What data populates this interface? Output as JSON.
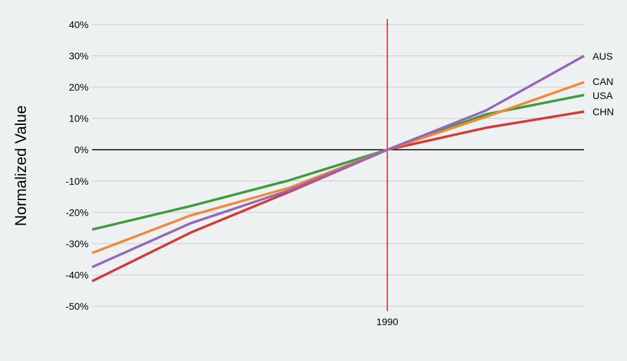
{
  "chart_data": {
    "type": "line",
    "title": "",
    "xlabel": "",
    "ylabel": "Normalized Value",
    "x": [
      1960,
      1970,
      1980,
      1990,
      2000,
      2010
    ],
    "x_tick_labels": [
      {
        "x": 1990,
        "label": "1990"
      }
    ],
    "xlim": [
      1960,
      2010
    ],
    "ylim": [
      -0.5,
      0.4
    ],
    "y_ticks": [
      {
        "value": 0.4,
        "label": "40%"
      },
      {
        "value": 0.3,
        "label": "30%"
      },
      {
        "value": 0.2,
        "label": "20%"
      },
      {
        "value": 0.1,
        "label": "10%"
      },
      {
        "value": 0.0,
        "label": "0%"
      },
      {
        "value": -0.1,
        "label": "-10%"
      },
      {
        "value": -0.2,
        "label": "-20%"
      },
      {
        "value": -0.3,
        "label": "-30%"
      },
      {
        "value": -0.4,
        "label": "-40%"
      },
      {
        "value": -0.5,
        "label": "-50%"
      }
    ],
    "grid": true,
    "reference_line_x": 1990,
    "reference_line_color": "#cc2222",
    "legend": "labels at line ends",
    "series": [
      {
        "name": "CHN",
        "color": "#d33a36",
        "values": [
          -0.42,
          -0.265,
          -0.135,
          0.0,
          0.07,
          0.122
        ]
      },
      {
        "name": "USA",
        "color": "#3d9a3d",
        "values": [
          -0.255,
          -0.18,
          -0.098,
          0.0,
          0.113,
          0.175
        ]
      },
      {
        "name": "CAN",
        "color": "#f08a38",
        "values": [
          -0.33,
          -0.21,
          -0.122,
          0.0,
          0.105,
          0.216
        ]
      },
      {
        "name": "AUS",
        "color": "#9467bd",
        "values": [
          -0.375,
          -0.235,
          -0.13,
          0.0,
          0.125,
          0.3
        ]
      }
    ]
  }
}
